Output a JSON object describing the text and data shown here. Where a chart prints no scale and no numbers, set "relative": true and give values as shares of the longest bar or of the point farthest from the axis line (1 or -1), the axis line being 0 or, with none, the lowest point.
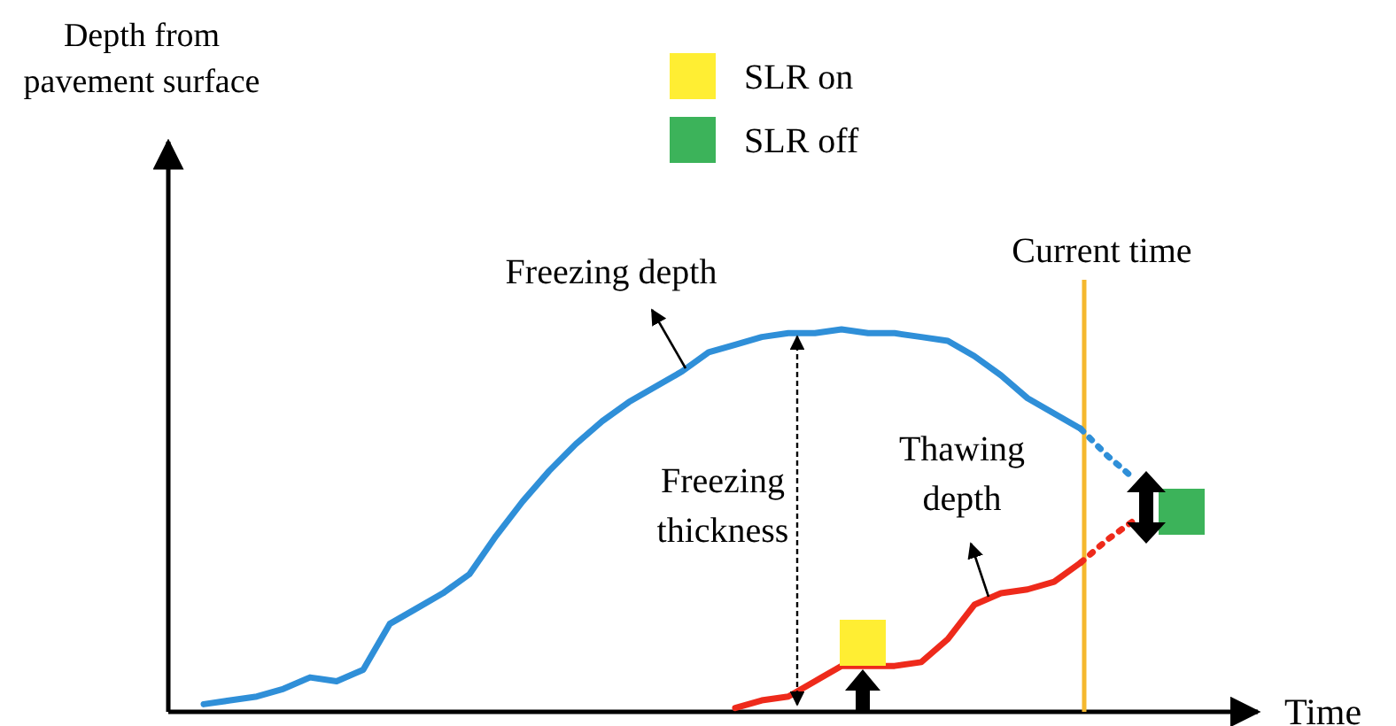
{
  "chart_data": {
    "type": "line",
    "relative": true,
    "xlabel": "Time",
    "categories": [
      null,
      null,
      null,
      null,
      null,
      null,
      null,
      null,
      null,
      null,
      null,
      null,
      null,
      null,
      null,
      null,
      null,
      null,
      null,
      null,
      null,
      null,
      null,
      null,
      null,
      null,
      null,
      null,
      null,
      null,
      null,
      null,
      null,
      null,
      null,
      null,
      null,
      null
    ],
    "series": [
      {
        "color": "#2f8fd8",
        "line_style": "solid",
        "values": [
          0.02,
          0.03,
          0.04,
          0.06,
          0.09,
          0.08,
          0.11,
          0.23,
          0.27,
          0.31,
          0.36,
          0.46,
          0.55,
          0.63,
          0.7,
          0.76,
          0.81,
          0.85,
          0.89,
          0.94,
          0.96,
          0.98,
          0.99,
          0.99,
          1,
          0.99,
          0.99,
          0.98,
          0.97,
          0.93,
          0.88,
          0.82,
          0.78,
          0.74,
          null,
          null,
          null,
          null
        ]
      },
      {
        "color": "#2f8fd8",
        "line_style": "dotted",
        "values": [
          null,
          null,
          null,
          null,
          null,
          null,
          null,
          null,
          null,
          null,
          null,
          null,
          null,
          null,
          null,
          null,
          null,
          null,
          null,
          null,
          null,
          null,
          null,
          null,
          null,
          null,
          null,
          null,
          null,
          null,
          null,
          null,
          null,
          0.74,
          0.67,
          0.61,
          null,
          null
        ]
      },
      {
        "color": "#ee2a1b",
        "line_style": "solid",
        "values": [
          null,
          null,
          null,
          null,
          null,
          null,
          null,
          null,
          null,
          null,
          null,
          null,
          null,
          null,
          null,
          null,
          null,
          null,
          null,
          null,
          0.01,
          0.03,
          0.04,
          0.08,
          0.12,
          0.12,
          0.12,
          0.13,
          0.19,
          0.28,
          0.31,
          0.32,
          0.34,
          0.39,
          null,
          null,
          null,
          null
        ]
      },
      {
        "color": "#ee2a1b",
        "line_style": "dotted",
        "values": [
          null,
          null,
          null,
          null,
          null,
          null,
          null,
          null,
          null,
          null,
          null,
          null,
          null,
          null,
          null,
          null,
          null,
          null,
          null,
          null,
          null,
          null,
          null,
          null,
          null,
          null,
          null,
          null,
          null,
          null,
          null,
          null,
          null,
          0.39,
          0.45,
          0.5,
          null,
          null
        ]
      }
    ],
    "annotations": [
      "Freezing depth",
      "Freezing\nthickness",
      "Thawing\ndepth",
      "SLR on",
      "SLR off",
      "Current time",
      "Depth from\npavement surface"
    ]
  }
}
